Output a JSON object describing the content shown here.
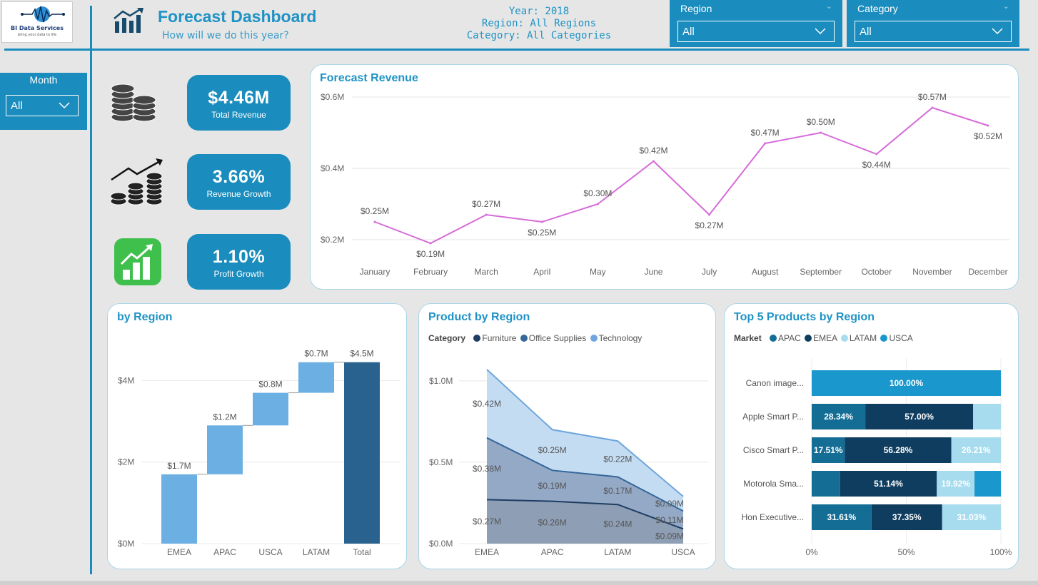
{
  "header": {
    "logo_name": "BI Data Services",
    "logo_tagline": "bring your data to life",
    "title": "Forecast Dashboard",
    "subtitle": "How will we do this year?",
    "filter_year": "Year: 2018",
    "filter_region": "Region: All Regions",
    "filter_category": "Category: All Categories"
  },
  "slicers": {
    "region": {
      "label": "Region",
      "value": "All"
    },
    "category": {
      "label": "Category",
      "value": "All"
    },
    "month": {
      "label": "Month",
      "value": "All"
    }
  },
  "kpis": [
    {
      "value": "$4.46M",
      "label": "Total Revenue",
      "icon": "coins-stack-icon"
    },
    {
      "value": "3.66%",
      "label": "Revenue Growth",
      "icon": "coins-growth-icon"
    },
    {
      "value": "1.10%",
      "label": "Profit Growth",
      "icon": "bar-growth-icon"
    }
  ],
  "colors": {
    "accent": "#1a8cbd",
    "line": "#d56bd9",
    "furniture": "#1f3d63",
    "office_supplies": "#36679a",
    "technology": "#6ea6dd",
    "apac": "#136d94",
    "emea": "#0f3d5f",
    "latam": "#a6dcee",
    "usca": "#1a97cc",
    "waterfall_step": "#6cb0e3",
    "waterfall_total": "#29628f"
  },
  "chart_data": [
    {
      "id": "forecast",
      "type": "line",
      "title": "Forecast Revenue",
      "categories": [
        "January",
        "February",
        "March",
        "April",
        "May",
        "June",
        "July",
        "August",
        "September",
        "October",
        "November",
        "December"
      ],
      "values": [
        0.25,
        0.19,
        0.27,
        0.25,
        0.3,
        0.42,
        0.27,
        0.47,
        0.5,
        0.44,
        0.57,
        0.52
      ],
      "labels": [
        "$0.25M",
        "$0.19M",
        "$0.27M",
        "$0.25M",
        "$0.30M",
        "$0.42M",
        "$0.27M",
        "$0.47M",
        "$0.50M",
        "$0.44M",
        "$0.57M",
        "$0.52M"
      ],
      "yticks": [
        0.2,
        0.4,
        0.6
      ],
      "ytick_labels": [
        "$0.2M",
        "$0.4M",
        "$0.6M"
      ],
      "ylim": [
        0.11,
        0.6
      ],
      "grid": true
    },
    {
      "id": "waterfall",
      "type": "bar",
      "title": "by Region",
      "categories": [
        "EMEA",
        "APAC",
        "USCA",
        "LATAM",
        "Total"
      ],
      "values": [
        1.7,
        1.2,
        0.8,
        0.7,
        4.5
      ],
      "labels": [
        "$1.7M",
        "$1.2M",
        "$0.8M",
        "$0.7M",
        "$4.5M"
      ],
      "cumulative_start": [
        0,
        1.7,
        2.9,
        3.7,
        0
      ],
      "cumulative_end": [
        1.7,
        2.9,
        3.7,
        4.45,
        4.45
      ],
      "yticks": [
        0,
        2,
        4
      ],
      "ytick_labels": [
        "$0M",
        "$2M",
        "$4M"
      ],
      "ylim": [
        0,
        4.9
      ],
      "grid": true
    },
    {
      "id": "product-region",
      "type": "area",
      "title": "Product by Region",
      "legend_title": "Category",
      "categories": [
        "EMEA",
        "APAC",
        "LATAM",
        "USCA"
      ],
      "series": [
        {
          "name": "Furniture",
          "values": [
            0.27,
            0.26,
            0.24,
            0.09
          ],
          "labels": [
            "$0.27M",
            "$0.26M",
            "$0.24M",
            "$0.09M"
          ]
        },
        {
          "name": "Office Supplies",
          "values": [
            0.38,
            0.19,
            0.17,
            0.11
          ],
          "labels": [
            "$0.38M",
            "$0.19M",
            "$0.17M",
            "$0.11M"
          ]
        },
        {
          "name": "Technology",
          "values": [
            0.42,
            0.25,
            0.22,
            0.09
          ],
          "labels": [
            "$0.42M",
            "$0.25M",
            "$0.22M",
            "$0.09M"
          ]
        }
      ],
      "yticks": [
        0,
        0.5,
        1.0
      ],
      "ytick_labels": [
        "$0.0M",
        "$0.5M",
        "$1.0M"
      ],
      "ylim": [
        0,
        1.1
      ],
      "grid": true
    },
    {
      "id": "top5",
      "type": "bar",
      "title": "Top 5 Products by Region",
      "legend_title": "Market",
      "orientation": "horizontal-100%-stacked",
      "legend": [
        "APAC",
        "EMEA",
        "LATAM",
        "USCA"
      ],
      "categories": [
        "Canon image...",
        "Apple Smart P...",
        "Cisco Smart P...",
        "Motorola Sma...",
        "Hon Executive..."
      ],
      "series": [
        {
          "name": "APAC",
          "values": [
            0,
            28.34,
            17.51,
            15.0,
            31.61
          ]
        },
        {
          "name": "EMEA",
          "values": [
            0,
            57.0,
            56.28,
            51.14,
            37.35
          ]
        },
        {
          "name": "LATAM",
          "values": [
            0,
            14.66,
            26.21,
            19.92,
            31.03
          ]
        },
        {
          "name": "USCA",
          "values": [
            100.0,
            0,
            0,
            13.94,
            0
          ]
        }
      ],
      "shown_labels": [
        [
          "",
          "",
          "",
          "100.00%"
        ],
        [
          "28.34%",
          "57.00%",
          "",
          ""
        ],
        [
          "17.51%",
          "56.28%",
          "26.21%",
          ""
        ],
        [
          "",
          "51.14%",
          "19.92%",
          ""
        ],
        [
          "31.61%",
          "37.35%",
          "31.03%",
          ""
        ]
      ],
      "xticks": [
        0,
        50,
        100
      ],
      "xtick_labels": [
        "0%",
        "50%",
        "100%"
      ]
    }
  ]
}
